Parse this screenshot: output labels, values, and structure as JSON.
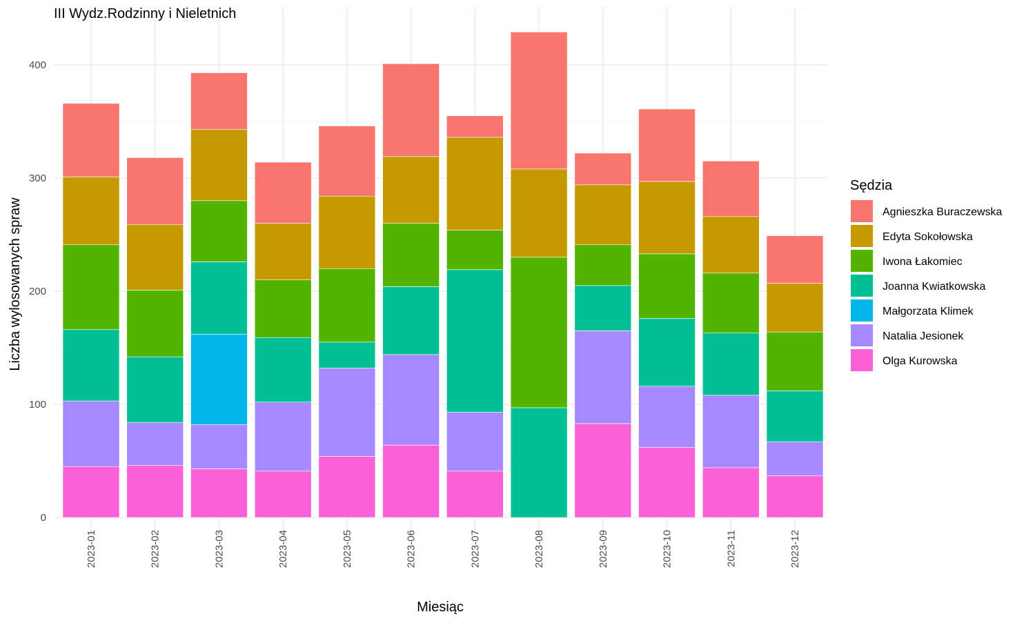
{
  "chart_data": {
    "type": "bar",
    "stacked": true,
    "title": "III Wydz.Rodzinny i Nieletnich",
    "xlabel": "Miesiąc",
    "ylabel": "Liczba wylosowanych spraw",
    "ylim": [
      0,
      440
    ],
    "yticks": [
      0,
      100,
      200,
      300,
      400
    ],
    "grid": true,
    "legend_title": "Sędzia",
    "legend_position": "right",
    "categories": [
      "2023-01",
      "2023-02",
      "2023-03",
      "2023-04",
      "2023-05",
      "2023-06",
      "2023-07",
      "2023-08",
      "2023-09",
      "2023-10",
      "2023-11",
      "2023-12"
    ],
    "series": [
      {
        "name": "Agnieszka Buraczewska",
        "color": "#F8766D",
        "values": [
          65,
          59,
          50,
          54,
          62,
          82,
          19,
          121,
          28,
          64,
          49,
          42
        ]
      },
      {
        "name": "Edyta Sokołowska",
        "color": "#C49A00",
        "values": [
          60,
          58,
          63,
          50,
          64,
          59,
          82,
          78,
          53,
          64,
          50,
          43
        ]
      },
      {
        "name": "Iwona Łakomiec",
        "color": "#53B400",
        "values": [
          75,
          59,
          54,
          51,
          65,
          56,
          35,
          133,
          36,
          57,
          53,
          52
        ]
      },
      {
        "name": "Joanna Kwiatkowska",
        "color": "#00C094",
        "values": [
          63,
          58,
          64,
          57,
          23,
          60,
          126,
          97,
          40,
          60,
          55,
          45
        ]
      },
      {
        "name": "Małgorzata Klimek",
        "color": "#00B6EB",
        "values": [
          0,
          0,
          80,
          0,
          0,
          0,
          0,
          0,
          0,
          0,
          0,
          0
        ]
      },
      {
        "name": "Natalia Jesionek",
        "color": "#A58AFF",
        "values": [
          58,
          38,
          39,
          61,
          78,
          80,
          52,
          0,
          82,
          54,
          64,
          30
        ]
      },
      {
        "name": "Olga Kurowska",
        "color": "#FB61D7",
        "values": [
          45,
          46,
          43,
          41,
          54,
          64,
          41,
          0,
          83,
          62,
          44,
          37
        ]
      }
    ]
  }
}
